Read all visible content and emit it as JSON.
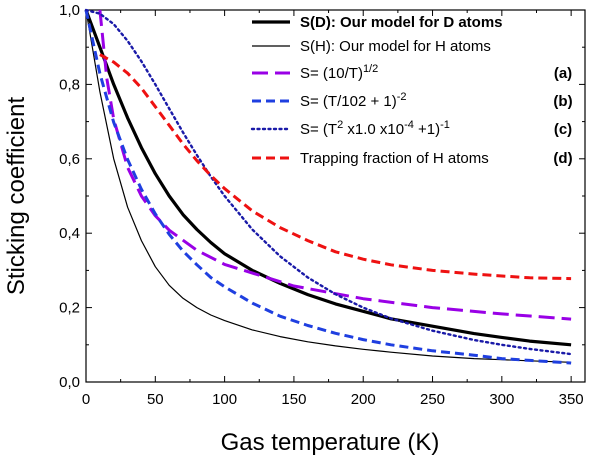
{
  "chart_data": {
    "type": "line",
    "title": "",
    "xlabel": "Gas temperature (K)",
    "ylabel": "Sticking coefficient",
    "xlim": [
      0,
      360
    ],
    "ylim": [
      0,
      1.0
    ],
    "x_ticks": [
      0,
      50,
      100,
      150,
      200,
      250,
      300,
      350
    ],
    "y_ticks": [
      0.0,
      0.2,
      0.4,
      0.6,
      0.8,
      1.0
    ],
    "x_tick_labels": [
      "0",
      "50",
      "100",
      "150",
      "200",
      "250",
      "300",
      "350"
    ],
    "y_tick_labels": [
      "0,0",
      "0,2",
      "0,4",
      "0,6",
      "0,8",
      "1,0"
    ],
    "legend_position": "top-right",
    "series": [
      {
        "name": "S(D): Our model for D atoms",
        "color": "#000000",
        "style": "solid-thick",
        "x": [
          0,
          10,
          20,
          30,
          40,
          50,
          60,
          70,
          80,
          90,
          100,
          120,
          140,
          160,
          180,
          200,
          220,
          250,
          280,
          300,
          320,
          350
        ],
        "y": [
          1.0,
          0.9,
          0.8,
          0.71,
          0.63,
          0.56,
          0.5,
          0.45,
          0.41,
          0.375,
          0.345,
          0.3,
          0.265,
          0.235,
          0.21,
          0.19,
          0.17,
          0.15,
          0.13,
          0.12,
          0.11,
          0.1
        ]
      },
      {
        "name": "S(H): Our model for H atoms",
        "color": "#000000",
        "style": "solid-thin",
        "x": [
          0,
          10,
          20,
          30,
          40,
          50,
          60,
          70,
          80,
          90,
          100,
          120,
          140,
          160,
          180,
          200,
          220,
          250,
          280,
          300,
          320,
          350
        ],
        "y": [
          1.0,
          0.78,
          0.6,
          0.47,
          0.38,
          0.31,
          0.26,
          0.225,
          0.2,
          0.18,
          0.165,
          0.14,
          0.122,
          0.108,
          0.097,
          0.088,
          0.08,
          0.07,
          0.063,
          0.06,
          0.057,
          0.053
        ]
      },
      {
        "name": "S= (10/T)^1/2",
        "tag": "(a)",
        "color": "#9900e6",
        "style": "dashed-long",
        "x": [
          10,
          15,
          20,
          30,
          40,
          50,
          60,
          80,
          100,
          150,
          200,
          250,
          300,
          350
        ],
        "y": [
          1.0,
          0.816,
          0.707,
          0.577,
          0.5,
          0.447,
          0.408,
          0.354,
          0.316,
          0.258,
          0.224,
          0.2,
          0.183,
          0.169
        ]
      },
      {
        "name": "S= (T/102 + 1)^-2",
        "tag": "(b)",
        "color": "#1f3fe0",
        "style": "dashed",
        "x": [
          0,
          10,
          20,
          30,
          40,
          50,
          60,
          70,
          80,
          90,
          100,
          120,
          140,
          160,
          180,
          200,
          220,
          250,
          280,
          300,
          320,
          350
        ],
        "y": [
          1.0,
          0.829,
          0.698,
          0.598,
          0.518,
          0.452,
          0.397,
          0.352,
          0.315,
          0.281,
          0.256,
          0.212,
          0.177,
          0.152,
          0.131,
          0.114,
          0.1,
          0.084,
          0.072,
          0.063,
          0.058,
          0.051
        ]
      },
      {
        "name": "S= (T^2 x1.0 x10^-4 +1)^-1",
        "tag": "(c)",
        "color": "#1a1aa8",
        "style": "dotted",
        "x": [
          0,
          10,
          20,
          30,
          40,
          50,
          60,
          70,
          80,
          90,
          100,
          120,
          140,
          160,
          180,
          200,
          220,
          250,
          280,
          300,
          320,
          350
        ],
        "y": [
          1.0,
          0.99,
          0.962,
          0.917,
          0.862,
          0.8,
          0.735,
          0.671,
          0.61,
          0.552,
          0.5,
          0.41,
          0.338,
          0.281,
          0.236,
          0.2,
          0.171,
          0.138,
          0.113,
          0.1,
          0.089,
          0.075
        ]
      },
      {
        "name": "Trapping fraction of H atoms",
        "tag": "(d)",
        "color": "#ee1111",
        "style": "dashed",
        "x": [
          10,
          20,
          30,
          40,
          50,
          60,
          70,
          80,
          90,
          100,
          120,
          140,
          160,
          180,
          200,
          220,
          250,
          280,
          300,
          320,
          350
        ],
        "y": [
          0.88,
          0.86,
          0.83,
          0.79,
          0.74,
          0.69,
          0.64,
          0.595,
          0.555,
          0.52,
          0.46,
          0.415,
          0.38,
          0.35,
          0.33,
          0.315,
          0.3,
          0.29,
          0.285,
          0.28,
          0.278
        ]
      }
    ],
    "legend": {
      "entries": [
        {
          "label": "S(D): Our model for D atoms",
          "tag": ""
        },
        {
          "label": "S(H): Our model for H atoms",
          "tag": ""
        },
        {
          "label_main": "S= (10/T)",
          "label_sup": "1/2",
          "label_rest": "",
          "tag": "(a)"
        },
        {
          "label_main": "S= (T/102 + 1)",
          "label_sup": "-2",
          "label_rest": "",
          "tag": "(b)"
        },
        {
          "label_main": "S= (T",
          "label_sup": "2",
          "label_mid": " x1.0 x10",
          "label_sup2": "-4",
          "label_rest": " +1)",
          "label_sup3": "-1",
          "tag": "(c)"
        },
        {
          "label": "Trapping fraction of H atoms",
          "tag": "(d)"
        }
      ]
    }
  }
}
